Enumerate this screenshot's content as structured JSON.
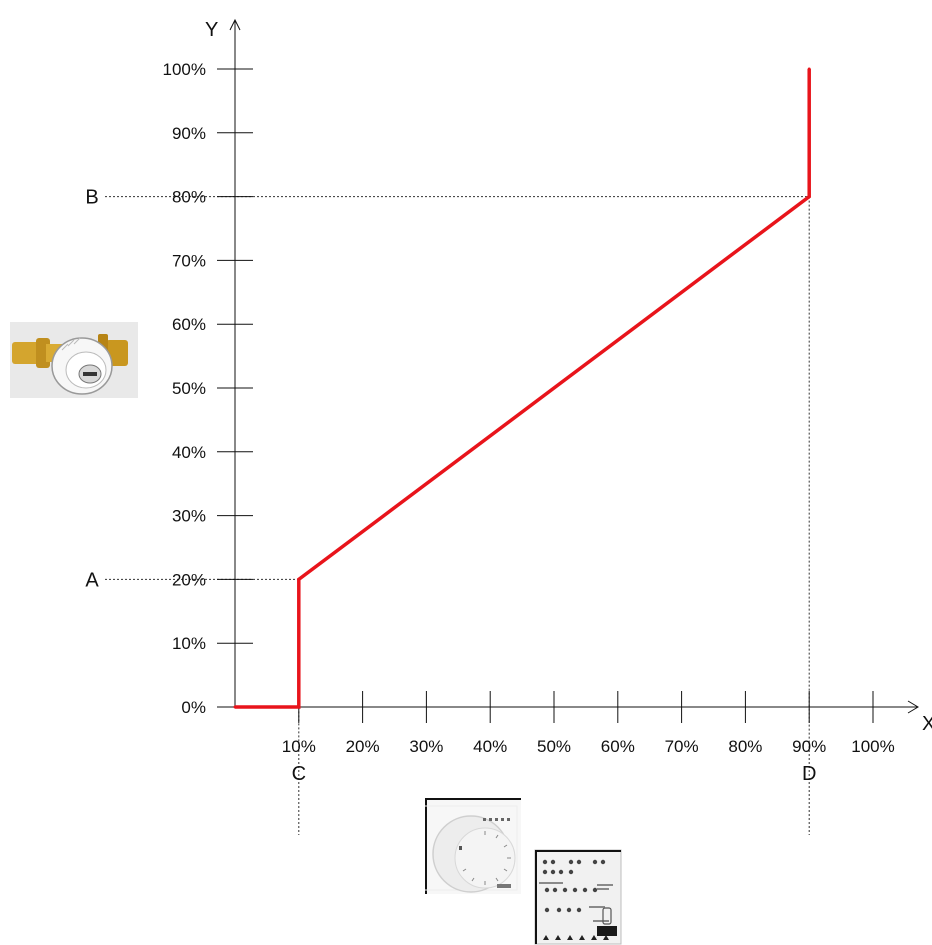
{
  "chart_data": {
    "type": "line",
    "title": "",
    "xlabel": "X",
    "ylabel": "Y",
    "xlim": [
      0,
      100
    ],
    "ylim": [
      0,
      100
    ],
    "x_ticks": [
      "10%",
      "20%",
      "30%",
      "40%",
      "50%",
      "60%",
      "70%",
      "80%",
      "90%",
      "100%"
    ],
    "y_ticks": [
      "0%",
      "10%",
      "20%",
      "30%",
      "40%",
      "50%",
      "60%",
      "70%",
      "80%",
      "90%",
      "100%"
    ],
    "grid": false,
    "series": [
      {
        "color": "#e8141b",
        "points": [
          [
            0,
            0
          ],
          [
            10,
            0
          ],
          [
            10,
            20
          ],
          [
            90,
            80
          ],
          [
            90,
            100
          ]
        ]
      }
    ],
    "reference_lines": [
      {
        "label": "A",
        "axis": "y",
        "value": 20
      },
      {
        "label": "B",
        "axis": "y",
        "value": 80
      },
      {
        "label": "C",
        "axis": "x",
        "value": 10
      },
      {
        "label": "D",
        "axis": "x",
        "value": 90
      }
    ]
  },
  "icons": {
    "valve": "radiator-valve-icon",
    "thermostat": "room-thermostat-icon",
    "actuator": "heating-actuator-icon"
  }
}
